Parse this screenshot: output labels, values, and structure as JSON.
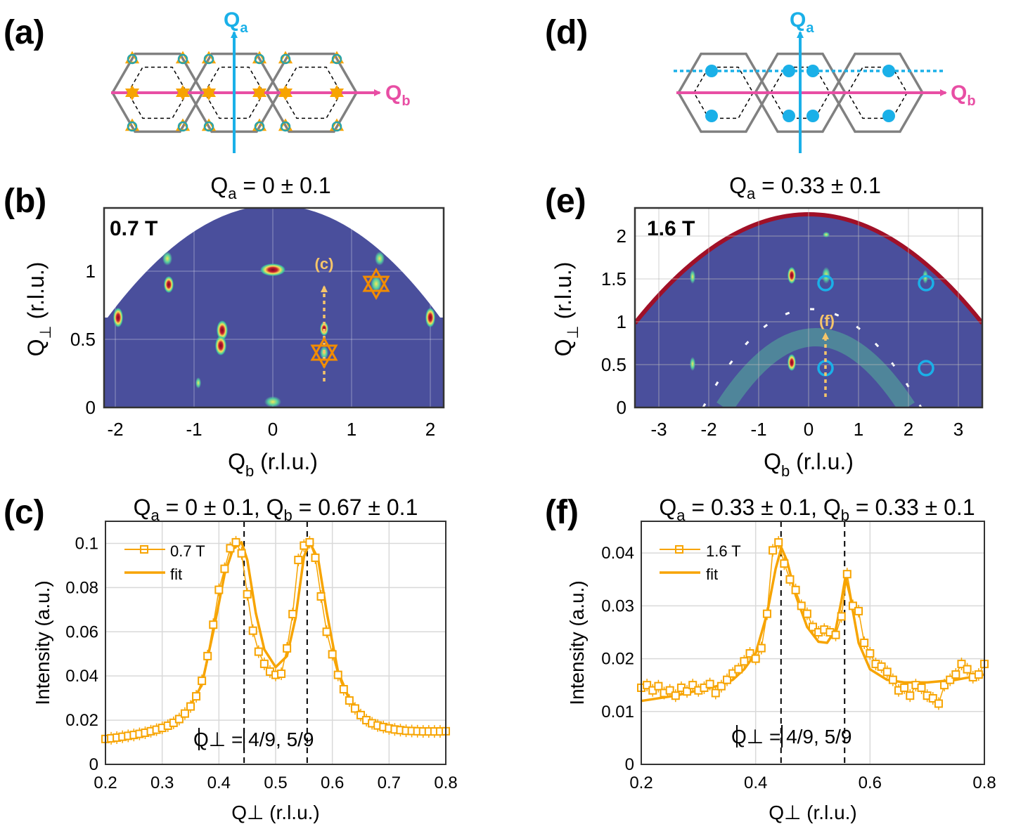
{
  "figure": {
    "panel_labels": [
      "(a)",
      "(d)",
      "(b)",
      "(e)",
      "(c)",
      "(f)"
    ],
    "colors": {
      "qa_axis": "#1ab0e8",
      "qb_axis": "#e84ea4",
      "orange": "#f7a400",
      "peak_orange": "#f28c00",
      "blue_dot": "#1ab0e8",
      "map_bg": "#4a4f9c",
      "hex_line": "#808080",
      "dashed_line": "#000000"
    }
  },
  "panel_a": {
    "label": "(a)",
    "axis_qa": "Q",
    "axis_qa_sub": "a",
    "axis_qb": "Q",
    "axis_qb_sub": "b"
  },
  "panel_d": {
    "label": "(d)",
    "axis_qa": "Q",
    "axis_qa_sub": "a",
    "axis_qb": "Q",
    "axis_qb_sub": "b"
  },
  "panel_b": {
    "label": "(b)",
    "title_prefix": "Q",
    "title_sub": "a",
    "title_rest": " = 0 ± 0.1",
    "field": "0.7 T",
    "cut_label": "(c)",
    "xlabel": "Q",
    "xlabel_sub": "b",
    "xlabel_units": "  (r.l.u.)",
    "ylabel": "Q",
    "ylabel_sub": "⊥",
    "ylabel_units": "  (r.l.u.)",
    "xticks": [
      "-2",
      "-1",
      "0",
      "1",
      "2"
    ],
    "yticks": [
      "0",
      "0.5",
      "1"
    ]
  },
  "panel_e": {
    "label": "(e)",
    "title_prefix": "Q",
    "title_sub": "a",
    "title_rest": " = 0.33 ± 0.1",
    "field": "1.6 T",
    "cut_label": "(f)",
    "xlabel": "Q",
    "xlabel_sub": "b",
    "xlabel_units": " (r.l.u.)",
    "ylabel": "Q",
    "ylabel_sub": "⊥",
    "ylabel_units": "  (r.l.u.)",
    "xticks": [
      "-3",
      "-2",
      "-1",
      "0",
      "1",
      "2",
      "3"
    ],
    "yticks": [
      "0",
      "0.5",
      "1",
      "1.5",
      "2"
    ]
  },
  "panel_c": {
    "label": "(c)",
    "title_a": "Q",
    "title_a_sub": "a",
    "title_a_rest": " = 0 ± 0.1, ",
    "title_b": "Q",
    "title_b_sub": "b",
    "title_b_rest": " = 0.67 ± 0.1",
    "annotation": "Q⊥ = 4/9, 5/9",
    "legend_data": "0.7 T",
    "legend_fit": "fit"
  },
  "panel_f": {
    "label": "(f)",
    "title_a": "Q",
    "title_a_sub": "a",
    "title_a_rest": " = 0.33 ± 0.1, ",
    "title_b": "Q",
    "title_b_sub": "b",
    "title_b_rest": " = 0.33 ± 0.1",
    "annotation": "Q⊥ = 4/9, 5/9",
    "legend_data": "1.6 T",
    "legend_fit": "fit"
  },
  "chart_data": [
    {
      "id": "c",
      "type": "line",
      "title": "Qa = 0 ± 0.1, Qb = 0.67 ± 0.1",
      "xlabel": "Q⊥ (r.l.u.)",
      "ylabel": "Intensity (a.u.)",
      "xlim": [
        0.2,
        0.8
      ],
      "ylim": [
        0,
        0.11
      ],
      "xticks": [
        0.2,
        0.3,
        0.4,
        0.5,
        0.6,
        0.7,
        0.8
      ],
      "xtick_labels": [
        "0.2",
        "0.3",
        "0.4",
        "0.5",
        "0.6",
        "0.7",
        "0.8"
      ],
      "yticks": [
        0,
        0.02,
        0.04,
        0.06,
        0.08,
        0.1
      ],
      "ytick_labels": [
        "0",
        "0.02",
        "0.04",
        "0.06",
        "0.08",
        "0.1"
      ],
      "vlines": [
        0.4444,
        0.5556
      ],
      "grid": true,
      "legend": "top-left",
      "series": [
        {
          "name": "0.7 T",
          "marker": "square",
          "x": [
            0.2,
            0.21,
            0.22,
            0.23,
            0.24,
            0.25,
            0.26,
            0.27,
            0.28,
            0.29,
            0.3,
            0.31,
            0.32,
            0.33,
            0.34,
            0.35,
            0.36,
            0.37,
            0.38,
            0.39,
            0.4,
            0.41,
            0.42,
            0.43,
            0.44,
            0.45,
            0.46,
            0.47,
            0.48,
            0.49,
            0.5,
            0.51,
            0.52,
            0.53,
            0.54,
            0.55,
            0.56,
            0.57,
            0.58,
            0.59,
            0.6,
            0.61,
            0.62,
            0.63,
            0.64,
            0.65,
            0.66,
            0.67,
            0.68,
            0.69,
            0.7,
            0.71,
            0.72,
            0.73,
            0.74,
            0.75,
            0.76,
            0.77,
            0.78,
            0.79,
            0.8
          ],
          "y": [
            0.0115,
            0.0118,
            0.0121,
            0.0125,
            0.0129,
            0.0133,
            0.0138,
            0.0143,
            0.015,
            0.0157,
            0.0165,
            0.0175,
            0.0188,
            0.0205,
            0.023,
            0.0262,
            0.0308,
            0.0378,
            0.049,
            0.0632,
            0.079,
            0.0885,
            0.0978,
            0.1005,
            0.0955,
            0.077,
            0.0605,
            0.051,
            0.0455,
            0.042,
            0.0405,
            0.041,
            0.0525,
            0.068,
            0.0925,
            0.099,
            0.1005,
            0.0935,
            0.076,
            0.06,
            0.0498,
            0.0405,
            0.034,
            0.0289,
            0.0253,
            0.0223,
            0.02,
            0.0186,
            0.0176,
            0.0169,
            0.0163,
            0.0158,
            0.0155,
            0.0152,
            0.0151,
            0.015,
            0.0149,
            0.0149,
            0.0149,
            0.0149,
            0.015
          ]
        },
        {
          "name": "fit",
          "marker": "none",
          "x": [
            0.2,
            0.25,
            0.3,
            0.34,
            0.37,
            0.39,
            0.41,
            0.425,
            0.44,
            0.45,
            0.465,
            0.48,
            0.5,
            0.52,
            0.535,
            0.55,
            0.56,
            0.575,
            0.59,
            0.61,
            0.63,
            0.66,
            0.7,
            0.75,
            0.8
          ],
          "y": [
            0.0115,
            0.013,
            0.016,
            0.0222,
            0.036,
            0.06,
            0.086,
            0.0975,
            0.1005,
            0.0925,
            0.0685,
            0.052,
            0.044,
            0.049,
            0.066,
            0.094,
            0.1005,
            0.093,
            0.069,
            0.042,
            0.0295,
            0.02,
            0.0165,
            0.0152,
            0.0149
          ]
        }
      ]
    },
    {
      "id": "f",
      "type": "line",
      "title": "Qa = 0.33 ± 0.1, Qb = 0.33 ± 0.1",
      "xlabel": "Q⊥ (r.l.u.)",
      "ylabel": "Intensity (a.u.)",
      "xlim": [
        0.2,
        0.8
      ],
      "ylim": [
        0,
        0.046
      ],
      "xticks": [
        0.2,
        0.4,
        0.6,
        0.8
      ],
      "xtick_labels": [
        "0.2",
        "0.4",
        "0.6",
        "0.8"
      ],
      "yticks": [
        0,
        0.01,
        0.02,
        0.03,
        0.04
      ],
      "ytick_labels": [
        "0",
        "0.01",
        "0.02",
        "0.03",
        "0.04"
      ],
      "vlines": [
        0.4444,
        0.5556
      ],
      "grid": true,
      "legend": "top-left",
      "series": [
        {
          "name": "1.6 T",
          "marker": "square",
          "x": [
            0.2,
            0.21,
            0.22,
            0.23,
            0.24,
            0.25,
            0.26,
            0.27,
            0.28,
            0.29,
            0.3,
            0.31,
            0.32,
            0.33,
            0.34,
            0.35,
            0.36,
            0.37,
            0.38,
            0.39,
            0.4,
            0.41,
            0.42,
            0.43,
            0.44,
            0.45,
            0.46,
            0.47,
            0.48,
            0.49,
            0.5,
            0.51,
            0.52,
            0.53,
            0.54,
            0.55,
            0.56,
            0.57,
            0.58,
            0.59,
            0.6,
            0.61,
            0.62,
            0.63,
            0.64,
            0.65,
            0.66,
            0.67,
            0.68,
            0.69,
            0.7,
            0.71,
            0.72,
            0.73,
            0.74,
            0.75,
            0.76,
            0.77,
            0.78,
            0.79,
            0.8
          ],
          "y": [
            0.0145,
            0.015,
            0.014,
            0.0148,
            0.0135,
            0.014,
            0.013,
            0.0145,
            0.0138,
            0.015,
            0.014,
            0.0145,
            0.0152,
            0.0135,
            0.0148,
            0.016,
            0.0172,
            0.018,
            0.0195,
            0.021,
            0.02,
            0.022,
            0.0285,
            0.0405,
            0.042,
            0.038,
            0.035,
            0.033,
            0.03,
            0.0285,
            0.026,
            0.025,
            0.0255,
            0.025,
            0.0245,
            0.028,
            0.036,
            0.03,
            0.029,
            0.023,
            0.021,
            0.019,
            0.0185,
            0.0175,
            0.016,
            0.014,
            0.0145,
            0.013,
            0.015,
            0.0145,
            0.013,
            0.0125,
            0.0115,
            0.015,
            0.016,
            0.017,
            0.019,
            0.018,
            0.0165,
            0.017,
            0.019
          ]
        },
        {
          "name": "fit",
          "marker": "none",
          "x": [
            0.2,
            0.26,
            0.3,
            0.34,
            0.36,
            0.38,
            0.4,
            0.42,
            0.435,
            0.445,
            0.455,
            0.47,
            0.49,
            0.51,
            0.525,
            0.54,
            0.55,
            0.557,
            0.565,
            0.58,
            0.6,
            0.63,
            0.66,
            0.7,
            0.75,
            0.8
          ],
          "y": [
            0.012,
            0.013,
            0.014,
            0.015,
            0.016,
            0.018,
            0.021,
            0.0285,
            0.037,
            0.041,
            0.0385,
            0.032,
            0.026,
            0.0232,
            0.023,
            0.0255,
            0.031,
            0.0355,
            0.032,
            0.023,
            0.018,
            0.016,
            0.0155,
            0.0155,
            0.016,
            0.017
          ]
        }
      ]
    }
  ]
}
